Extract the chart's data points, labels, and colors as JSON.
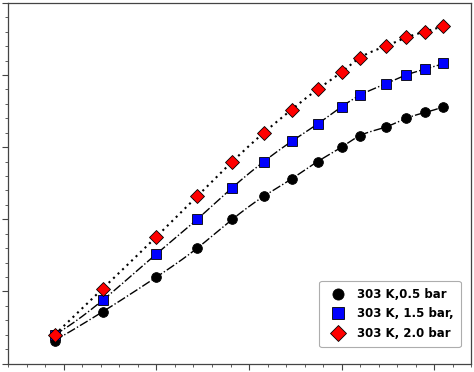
{
  "series": [
    {
      "label": "303 K,0.5 bar",
      "color": "black",
      "marker": "o",
      "markersize": 7,
      "linestyle": "-.",
      "x": [
        0.45,
        0.71,
        1.0,
        1.22,
        1.41,
        1.58,
        1.73,
        1.87,
        2.0,
        2.1,
        2.24,
        2.35,
        2.45,
        2.55
      ],
      "y": [
        0.08,
        0.18,
        0.3,
        0.4,
        0.5,
        0.58,
        0.64,
        0.7,
        0.75,
        0.79,
        0.82,
        0.85,
        0.87,
        0.89
      ]
    },
    {
      "label": "303 K, 1.5 bar,",
      "color": "blue",
      "marker": "s",
      "markersize": 7,
      "linestyle": "-.",
      "x": [
        0.45,
        0.71,
        1.0,
        1.22,
        1.41,
        1.58,
        1.73,
        1.87,
        2.0,
        2.1,
        2.24,
        2.35,
        2.45,
        2.55
      ],
      "y": [
        0.1,
        0.22,
        0.38,
        0.5,
        0.61,
        0.7,
        0.77,
        0.83,
        0.89,
        0.93,
        0.97,
        1.0,
        1.02,
        1.04
      ]
    },
    {
      "label": "303 K, 2.0 bar",
      "color": "red",
      "marker": "D",
      "markersize": 7,
      "linestyle": ":",
      "x": [
        0.45,
        0.71,
        1.0,
        1.22,
        1.41,
        1.58,
        1.73,
        1.87,
        2.0,
        2.1,
        2.24,
        2.35,
        2.45,
        2.55
      ],
      "y": [
        0.1,
        0.26,
        0.44,
        0.58,
        0.7,
        0.8,
        0.88,
        0.95,
        1.01,
        1.06,
        1.1,
        1.13,
        1.15,
        1.17
      ]
    }
  ],
  "xlim": [
    0.2,
    2.7
  ],
  "ylim": [
    0.0,
    1.25
  ],
  "background_color": "#ffffff",
  "tick_color": "#444444",
  "spine_color": "#444444",
  "line_color": "black",
  "line_width": 1.0
}
